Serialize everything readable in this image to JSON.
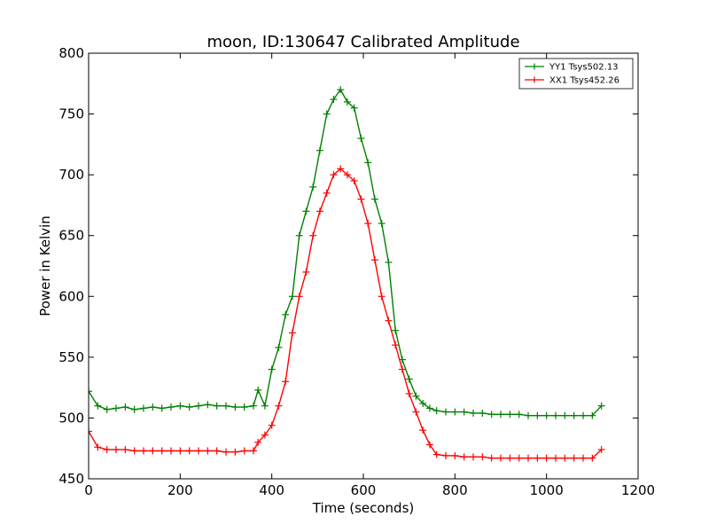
{
  "chart_data": {
    "type": "line",
    "title": "moon, ID:130647 Calibrated Amplitude",
    "xlabel": "Time (seconds)",
    "ylabel": "Power in Kelvin",
    "xlim": [
      0,
      1200
    ],
    "ylim": [
      450,
      800
    ],
    "xticks": [
      0,
      200,
      400,
      600,
      800,
      1000,
      1200
    ],
    "yticks": [
      450,
      500,
      550,
      600,
      650,
      700,
      750,
      800
    ],
    "grid": false,
    "legend_position": "top-right",
    "marker": "plus",
    "series": [
      {
        "name": "YY1 Tsys502.13",
        "color": "#008000",
        "x": [
          0,
          20,
          40,
          60,
          80,
          100,
          120,
          140,
          160,
          180,
          200,
          220,
          240,
          260,
          280,
          300,
          320,
          340,
          360,
          370,
          385,
          400,
          415,
          430,
          445,
          460,
          475,
          490,
          505,
          520,
          535,
          550,
          565,
          580,
          595,
          610,
          625,
          640,
          655,
          670,
          685,
          700,
          715,
          730,
          745,
          760,
          780,
          800,
          820,
          840,
          860,
          880,
          900,
          920,
          940,
          960,
          980,
          1000,
          1020,
          1040,
          1060,
          1080,
          1100,
          1120
        ],
        "y": [
          522,
          510,
          507,
          508,
          509,
          507,
          508,
          509,
          508,
          509,
          510,
          509,
          510,
          511,
          510,
          510,
          509,
          509,
          510,
          523,
          510,
          540,
          558,
          585,
          600,
          650,
          670,
          690,
          720,
          750,
          762,
          770,
          760,
          755,
          730,
          710,
          680,
          660,
          628,
          572,
          548,
          532,
          518,
          512,
          508,
          506,
          505,
          505,
          505,
          504,
          504,
          503,
          503,
          503,
          503,
          502,
          502,
          502,
          502,
          502,
          502,
          502,
          502,
          510
        ]
      },
      {
        "name": "XX1 Tsys452.26",
        "color": "#ff0000",
        "x": [
          0,
          20,
          40,
          60,
          80,
          100,
          120,
          140,
          160,
          180,
          200,
          220,
          240,
          260,
          280,
          300,
          320,
          340,
          360,
          370,
          385,
          400,
          415,
          430,
          445,
          460,
          475,
          490,
          505,
          520,
          535,
          550,
          565,
          580,
          595,
          610,
          625,
          640,
          655,
          670,
          685,
          700,
          715,
          730,
          745,
          760,
          780,
          800,
          820,
          840,
          860,
          880,
          900,
          920,
          940,
          960,
          980,
          1000,
          1020,
          1040,
          1060,
          1080,
          1100,
          1120
        ],
        "y": [
          489,
          476,
          474,
          474,
          474,
          473,
          473,
          473,
          473,
          473,
          473,
          473,
          473,
          473,
          473,
          472,
          472,
          473,
          473,
          480,
          486,
          494,
          510,
          530,
          570,
          600,
          620,
          650,
          670,
          685,
          700,
          705,
          700,
          695,
          680,
          660,
          630,
          600,
          580,
          560,
          540,
          520,
          505,
          490,
          478,
          470,
          469,
          469,
          468,
          468,
          468,
          467,
          467,
          467,
          467,
          467,
          467,
          467,
          467,
          467,
          467,
          467,
          467,
          474
        ]
      }
    ]
  }
}
